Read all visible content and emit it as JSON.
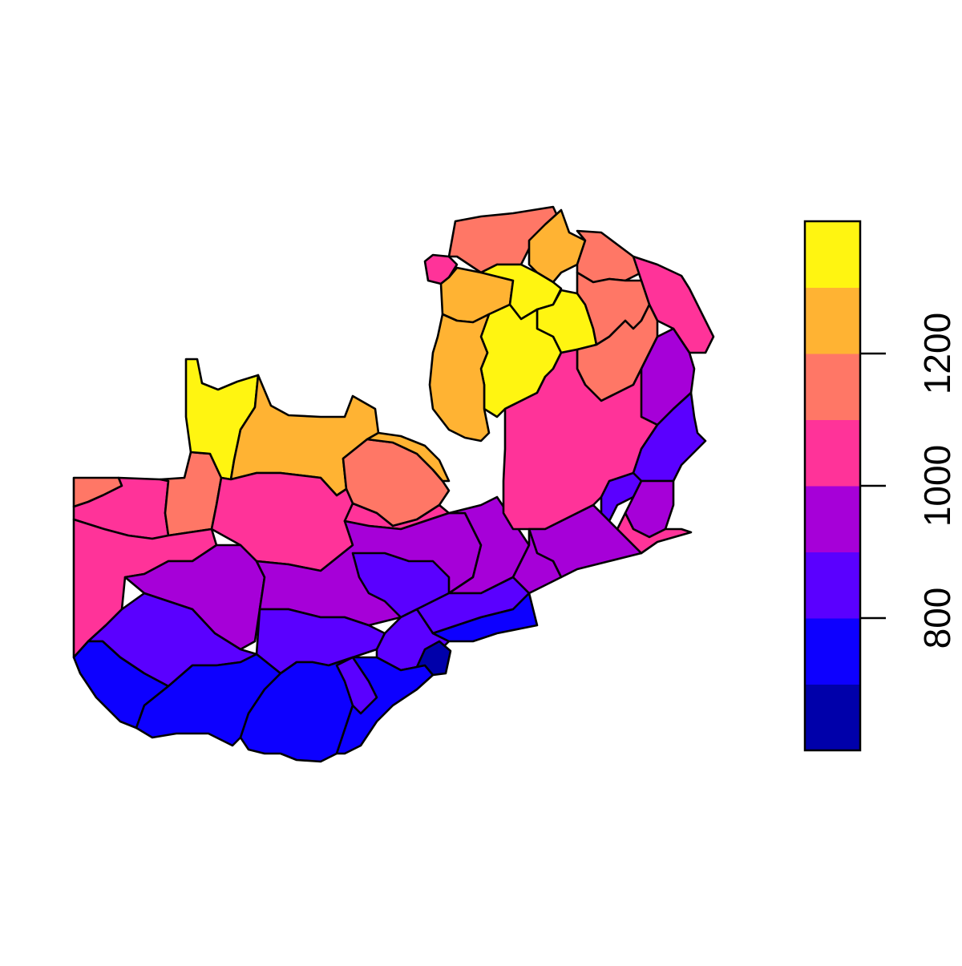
{
  "map": {
    "legend": {
      "ticks": [
        "800",
        "1000",
        "1200"
      ],
      "tick_values": [
        800,
        1000,
        1200
      ],
      "bins": [
        {
          "min": 600,
          "max": 700,
          "color": "#0000AA"
        },
        {
          "min": 700,
          "max": 800,
          "color": "#0D00FF"
        },
        {
          "min": 800,
          "max": 900,
          "color": "#5A00FF"
        },
        {
          "min": 900,
          "max": 1000,
          "color": "#A600D8"
        },
        {
          "min": 1000,
          "max": 1100,
          "color": "#FF3399"
        },
        {
          "min": 1100,
          "max": 1200,
          "color": "#FF7766"
        },
        {
          "min": 1200,
          "max": 1300,
          "color": "#FFB333"
        },
        {
          "min": 1300,
          "max": 1400,
          "color": "#FFF511"
        }
      ]
    }
  }
}
